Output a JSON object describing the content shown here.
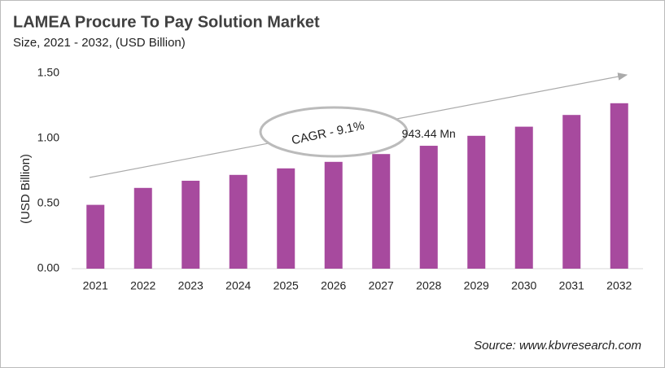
{
  "chart_data": {
    "type": "bar",
    "title": "LAMEA Procure To Pay Solution Market",
    "subtitle": "Size, 2021 - 2032, (USD Billion)",
    "y_label": "(USD Billion)",
    "categories": [
      "2021",
      "2022",
      "2023",
      "2024",
      "2025",
      "2026",
      "2027",
      "2028",
      "2029",
      "2030",
      "2031",
      "2032"
    ],
    "values": [
      0.49,
      0.62,
      0.675,
      0.72,
      0.77,
      0.82,
      0.88,
      0.94344,
      1.02,
      1.09,
      1.18,
      1.27
    ],
    "value_labels": [
      null,
      null,
      null,
      null,
      null,
      null,
      null,
      "943.44 Mn",
      null,
      null,
      null,
      null
    ],
    "color": "#a74a9e",
    "ylim": [
      0,
      1.5
    ],
    "yticks": [
      {
        "value": 0,
        "label": "0.00"
      },
      {
        "value": 0.5,
        "label": "0.50"
      },
      {
        "value": 1,
        "label": "1.00"
      },
      {
        "value": 1.5,
        "label": "1.50"
      }
    ],
    "grid": false,
    "annotation": "CAGR - 9.1%",
    "source": "Source: www.kbvresearch.com"
  }
}
